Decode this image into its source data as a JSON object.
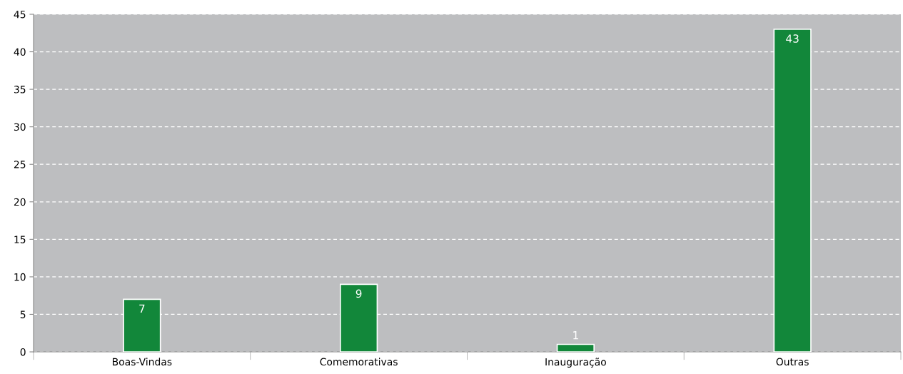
{
  "chart_data": {
    "type": "bar",
    "categories": [
      "Boas-Vindas",
      "Comemorativas",
      "Inauguração",
      "Outras"
    ],
    "values": [
      7,
      9,
      1,
      43
    ],
    "color": "#12873a",
    "ylim": [
      0,
      45
    ],
    "yticks": [
      0,
      5,
      10,
      15,
      20,
      25,
      30,
      35,
      40,
      45
    ],
    "grid": "y",
    "data_labels": true
  }
}
